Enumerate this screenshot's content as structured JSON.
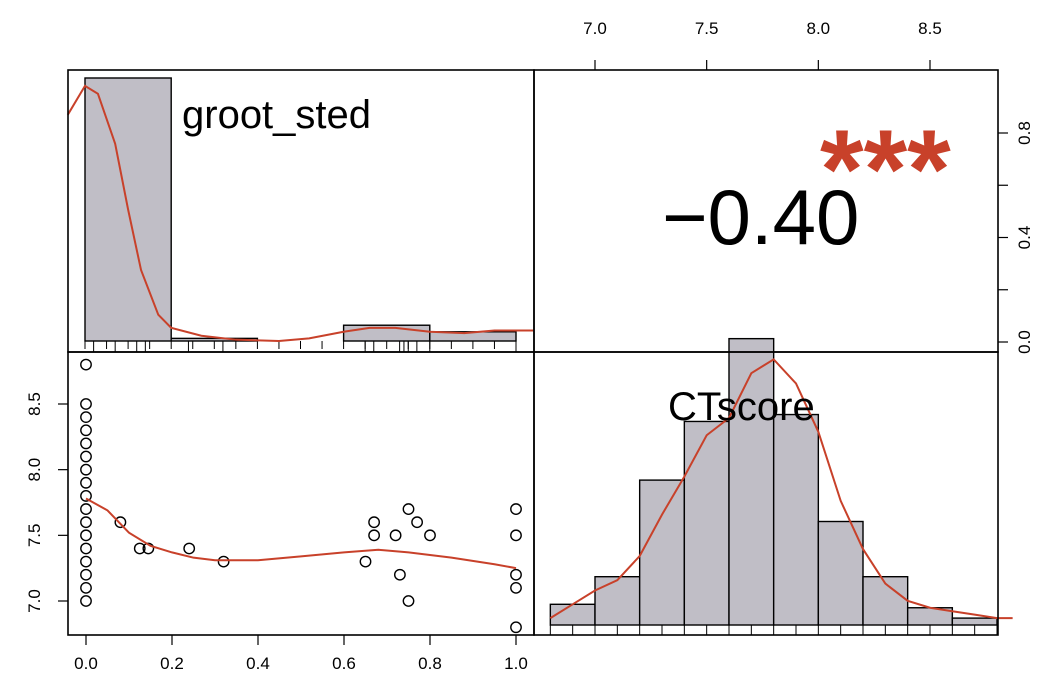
{
  "chart_data": {
    "type": "scatter",
    "variables": [
      "groot_sted",
      "CTscore"
    ],
    "correlation": {
      "value_label": "−0.40",
      "value": -0.4,
      "stars": "***"
    },
    "x_ticks_bottom": [
      "0.0",
      "0.2",
      "0.4",
      "0.6",
      "0.8",
      "1.0"
    ],
    "x_ticks_top": [
      "7.0",
      "7.5",
      "8.0",
      "8.5"
    ],
    "y_ticks_left": [
      "7.0",
      "7.5",
      "8.0",
      "8.5"
    ],
    "y_ticks_right": [
      "0.0",
      "0.4",
      "0.8"
    ],
    "groot_sted_hist": {
      "xlim": [
        0,
        1.05
      ],
      "density_ylim": [
        0,
        1.0
      ],
      "bins": [
        {
          "x0": 0.0,
          "x1": 0.2,
          "density": 1.0
        },
        {
          "x0": 0.2,
          "x1": 0.4,
          "density": 0.01
        },
        {
          "x0": 0.4,
          "x1": 0.6,
          "density": 0.0
        },
        {
          "x0": 0.6,
          "x1": 0.8,
          "density": 0.06
        },
        {
          "x0": 0.8,
          "x1": 1.0,
          "density": 0.035
        }
      ],
      "density_curve": [
        [
          -0.04,
          0.86
        ],
        [
          0.0,
          0.97
        ],
        [
          0.03,
          0.94
        ],
        [
          0.07,
          0.75
        ],
        [
          0.1,
          0.5
        ],
        [
          0.13,
          0.27
        ],
        [
          0.17,
          0.1
        ],
        [
          0.2,
          0.05
        ],
        [
          0.27,
          0.02
        ],
        [
          0.35,
          0.005
        ],
        [
          0.45,
          0.0
        ],
        [
          0.52,
          0.01
        ],
        [
          0.6,
          0.035
        ],
        [
          0.66,
          0.05
        ],
        [
          0.72,
          0.05
        ],
        [
          0.8,
          0.035
        ],
        [
          0.88,
          0.03
        ],
        [
          0.95,
          0.04
        ],
        [
          1.04,
          0.04
        ]
      ],
      "rug": [
        0.02,
        0.07,
        0.12,
        0.14,
        0.24,
        0.32,
        0.65,
        0.67,
        0.73,
        0.74,
        0.75,
        0.77,
        0.8,
        1.0
      ]
    },
    "ctscore_hist": {
      "xlim": [
        6.8,
        8.87
      ],
      "density_ylim": [
        0,
        1.0
      ],
      "bins": [
        {
          "x0": 6.8,
          "x1": 7.0,
          "density": 0.06
        },
        {
          "x0": 7.0,
          "x1": 7.2,
          "density": 0.14
        },
        {
          "x0": 7.2,
          "x1": 7.4,
          "density": 0.42
        },
        {
          "x0": 7.4,
          "x1": 7.6,
          "density": 0.59
        },
        {
          "x0": 7.6,
          "x1": 7.8,
          "density": 0.83
        },
        {
          "x0": 7.8,
          "x1": 8.0,
          "density": 0.61
        },
        {
          "x0": 8.0,
          "x1": 8.2,
          "density": 0.3
        },
        {
          "x0": 8.2,
          "x1": 8.4,
          "density": 0.14
        },
        {
          "x0": 8.4,
          "x1": 8.6,
          "density": 0.05
        },
        {
          "x0": 8.6,
          "x1": 8.8,
          "density": 0.02
        }
      ],
      "density_curve": [
        [
          6.8,
          0.02
        ],
        [
          6.9,
          0.06
        ],
        [
          7.0,
          0.1
        ],
        [
          7.1,
          0.13
        ],
        [
          7.2,
          0.2
        ],
        [
          7.3,
          0.32
        ],
        [
          7.4,
          0.43
        ],
        [
          7.5,
          0.55
        ],
        [
          7.6,
          0.6
        ],
        [
          7.7,
          0.73
        ],
        [
          7.8,
          0.77
        ],
        [
          7.9,
          0.7
        ],
        [
          8.0,
          0.56
        ],
        [
          8.1,
          0.36
        ],
        [
          8.2,
          0.22
        ],
        [
          8.3,
          0.12
        ],
        [
          8.4,
          0.07
        ],
        [
          8.5,
          0.05
        ],
        [
          8.6,
          0.04
        ],
        [
          8.7,
          0.03
        ],
        [
          8.8,
          0.02
        ],
        [
          8.87,
          0.02
        ]
      ]
    },
    "scatter": {
      "xlim": [
        -0.04,
        1.04
      ],
      "ylim": [
        6.77,
        8.87
      ],
      "points": [
        [
          0.0,
          8.8
        ],
        [
          0.0,
          8.5
        ],
        [
          0.0,
          8.4
        ],
        [
          0.0,
          8.3
        ],
        [
          0.0,
          8.2
        ],
        [
          0.0,
          8.1
        ],
        [
          0.0,
          8.0
        ],
        [
          0.0,
          7.9
        ],
        [
          0.0,
          7.8
        ],
        [
          0.0,
          7.7
        ],
        [
          0.0,
          7.6
        ],
        [
          0.0,
          7.5
        ],
        [
          0.0,
          7.4
        ],
        [
          0.0,
          7.3
        ],
        [
          0.0,
          7.2
        ],
        [
          0.0,
          7.1
        ],
        [
          0.0,
          7.0
        ],
        [
          0.08,
          7.6
        ],
        [
          0.125,
          7.4
        ],
        [
          0.145,
          7.4
        ],
        [
          0.24,
          7.4
        ],
        [
          0.32,
          7.3
        ],
        [
          0.65,
          7.3
        ],
        [
          0.67,
          7.6
        ],
        [
          0.67,
          7.5
        ],
        [
          0.72,
          7.5
        ],
        [
          0.73,
          7.2
        ],
        [
          0.75,
          7.7
        ],
        [
          0.75,
          7.0
        ],
        [
          0.77,
          7.6
        ],
        [
          0.8,
          7.5
        ],
        [
          1.0,
          7.7
        ],
        [
          1.0,
          7.5
        ],
        [
          1.0,
          7.2
        ],
        [
          1.0,
          7.1
        ],
        [
          1.0,
          6.8
        ]
      ],
      "smooth_line": [
        [
          0.0,
          7.78
        ],
        [
          0.05,
          7.69
        ],
        [
          0.1,
          7.52
        ],
        [
          0.15,
          7.42
        ],
        [
          0.2,
          7.37
        ],
        [
          0.25,
          7.33
        ],
        [
          0.3,
          7.31
        ],
        [
          0.4,
          7.31
        ],
        [
          0.5,
          7.34
        ],
        [
          0.6,
          7.37
        ],
        [
          0.68,
          7.39
        ],
        [
          0.75,
          7.37
        ],
        [
          0.85,
          7.33
        ],
        [
          0.95,
          7.28
        ],
        [
          1.0,
          7.25
        ]
      ]
    }
  }
}
